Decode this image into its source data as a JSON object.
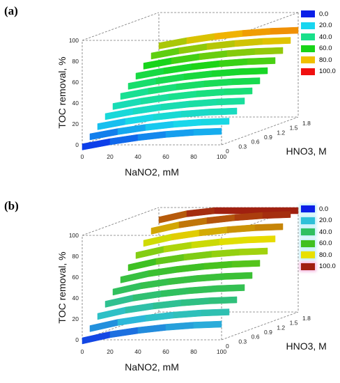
{
  "chart_data": [
    {
      "type": "surface",
      "panel_label": "(a)",
      "xlabel": "NaNO2, mM",
      "ylabel": "HNO3, M",
      "zlabel": "TOC removal, %",
      "x_ticks": [
        "0",
        "20",
        "40",
        "60",
        "80",
        "100"
      ],
      "y_ticks": [
        "0",
        "0.3",
        "0.6",
        "0.9",
        "1.2",
        "1.5",
        "1.8"
      ],
      "z_ticks": [
        "0",
        "20",
        "40",
        "60",
        "80",
        "100"
      ],
      "xlim": [
        0,
        100
      ],
      "ylim": [
        0,
        1.8
      ],
      "zlim": [
        0,
        100
      ],
      "series": [
        {
          "y": 0.0,
          "x": [
            0,
            20,
            40,
            60,
            80,
            100
          ],
          "z": [
            1,
            6,
            10,
            13,
            15,
            16
          ]
        },
        {
          "y": 0.18,
          "x": [
            0,
            20,
            40,
            60,
            80,
            100
          ],
          "z": [
            8,
            13,
            17,
            20,
            22,
            23
          ]
        },
        {
          "y": 0.36,
          "x": [
            0,
            20,
            40,
            60,
            80,
            100
          ],
          "z": [
            15,
            20,
            24,
            27,
            29,
            30
          ]
        },
        {
          "y": 0.54,
          "x": [
            0,
            20,
            40,
            60,
            80,
            100
          ],
          "z": [
            22,
            27,
            31,
            34,
            36,
            37
          ]
        },
        {
          "y": 0.72,
          "x": [
            0,
            20,
            40,
            60,
            80,
            100
          ],
          "z": [
            29,
            34,
            38,
            41,
            43,
            44
          ]
        },
        {
          "y": 0.9,
          "x": [
            0,
            20,
            40,
            60,
            80,
            100
          ],
          "z": [
            36,
            41,
            45,
            48,
            50,
            51
          ]
        },
        {
          "y": 1.08,
          "x": [
            0,
            20,
            40,
            60,
            80,
            100
          ],
          "z": [
            43,
            48,
            52,
            55,
            57,
            58
          ]
        },
        {
          "y": 1.26,
          "x": [
            0,
            20,
            40,
            60,
            80,
            100
          ],
          "z": [
            50,
            55,
            59,
            62,
            64,
            65
          ]
        },
        {
          "y": 1.44,
          "x": [
            0,
            20,
            40,
            60,
            80,
            100
          ],
          "z": [
            57,
            62,
            66,
            69,
            71,
            72
          ]
        },
        {
          "y": 1.62,
          "x": [
            0,
            20,
            40,
            60,
            80,
            100
          ],
          "z": [
            64,
            69,
            73,
            76,
            78,
            79
          ]
        },
        {
          "y": 1.8,
          "x": [
            0,
            20,
            40,
            60,
            80,
            100
          ],
          "z": [
            71,
            76,
            80,
            83,
            85,
            86
          ]
        }
      ],
      "legend": [
        {
          "label": "0.0",
          "color": "#0a1fe8"
        },
        {
          "label": "20.0",
          "color": "#19d6f0"
        },
        {
          "label": "40.0",
          "color": "#19e08a"
        },
        {
          "label": "60.0",
          "color": "#18d418"
        },
        {
          "label": "80.0",
          "color": "#f0c000"
        },
        {
          "label": "100.0",
          "color": "#f01010"
        }
      ]
    },
    {
      "type": "surface",
      "panel_label": "(b)",
      "xlabel": "NaNO2, mM",
      "ylabel": "HNO3, M",
      "zlabel": "TOC removal, %",
      "x_ticks": [
        "0",
        "20",
        "40",
        "60",
        "80",
        "100"
      ],
      "y_ticks": [
        "0",
        "0.3",
        "0.6",
        "0.9",
        "1.2",
        "1.5",
        "1.8"
      ],
      "z_ticks": [
        "0",
        "20",
        "40",
        "60",
        "80",
        "100"
      ],
      "xlim": [
        0,
        100
      ],
      "ylim": [
        0,
        1.8
      ],
      "zlim": [
        0,
        100
      ],
      "series": [
        {
          "y": 0.0,
          "x": [
            0,
            20,
            40,
            60,
            80,
            100
          ],
          "z": [
            2,
            8,
            12,
            15,
            17,
            18
          ]
        },
        {
          "y": 0.18,
          "x": [
            0,
            20,
            40,
            60,
            80,
            100
          ],
          "z": [
            11,
            17,
            21,
            24,
            26,
            27
          ]
        },
        {
          "y": 0.36,
          "x": [
            0,
            20,
            40,
            60,
            80,
            100
          ],
          "z": [
            20,
            26,
            30,
            33,
            35,
            36
          ]
        },
        {
          "y": 0.54,
          "x": [
            0,
            20,
            40,
            60,
            80,
            100
          ],
          "z": [
            29,
            35,
            39,
            42,
            44,
            45
          ]
        },
        {
          "y": 0.72,
          "x": [
            0,
            20,
            40,
            60,
            80,
            100
          ],
          "z": [
            38,
            44,
            48,
            51,
            53,
            54
          ]
        },
        {
          "y": 0.9,
          "x": [
            0,
            20,
            40,
            60,
            80,
            100
          ],
          "z": [
            47,
            53,
            57,
            60,
            62,
            63
          ]
        },
        {
          "y": 1.08,
          "x": [
            0,
            20,
            40,
            60,
            80,
            100
          ],
          "z": [
            56,
            62,
            66,
            69,
            71,
            72
          ]
        },
        {
          "y": 1.26,
          "x": [
            0,
            20,
            40,
            60,
            80,
            100
          ],
          "z": [
            65,
            71,
            75,
            78,
            80,
            81
          ]
        },
        {
          "y": 1.44,
          "x": [
            0,
            20,
            40,
            60,
            80,
            100
          ],
          "z": [
            74,
            80,
            84,
            87,
            89,
            90
          ]
        },
        {
          "y": 1.62,
          "x": [
            0,
            20,
            40,
            60,
            80,
            100
          ],
          "z": [
            83,
            89,
            93,
            96,
            98,
            99
          ]
        },
        {
          "y": 1.8,
          "x": [
            0,
            20,
            40,
            60,
            80,
            100
          ],
          "z": [
            91,
            97,
            100,
            100,
            100,
            100
          ]
        }
      ],
      "legend": [
        {
          "label": "0.0",
          "color": "#0a1fe8"
        },
        {
          "label": "20.0",
          "color": "#2ec0d8"
        },
        {
          "label": "40.0",
          "color": "#30c060"
        },
        {
          "label": "60.0",
          "color": "#40c020"
        },
        {
          "label": "80.0",
          "color": "#e8e000"
        },
        {
          "label": "100.0",
          "color": "#a02010"
        }
      ]
    }
  ]
}
